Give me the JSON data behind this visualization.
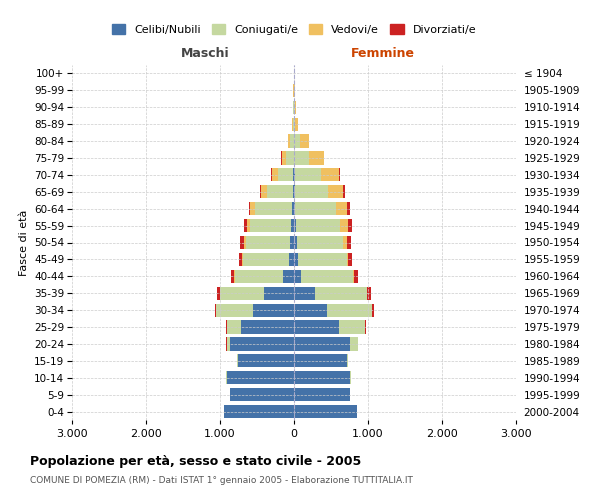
{
  "age_groups": [
    "0-4",
    "5-9",
    "10-14",
    "15-19",
    "20-24",
    "25-29",
    "30-34",
    "35-39",
    "40-44",
    "45-49",
    "50-54",
    "55-59",
    "60-64",
    "65-69",
    "70-74",
    "75-79",
    "80-84",
    "85-89",
    "90-94",
    "95-99",
    "100+"
  ],
  "birth_years": [
    "2000-2004",
    "1995-1999",
    "1990-1994",
    "1985-1989",
    "1980-1984",
    "1975-1979",
    "1970-1974",
    "1965-1969",
    "1960-1964",
    "1955-1959",
    "1950-1954",
    "1945-1949",
    "1940-1944",
    "1935-1939",
    "1930-1934",
    "1925-1929",
    "1920-1924",
    "1915-1919",
    "1910-1914",
    "1905-1909",
    "≤ 1904"
  ],
  "male": {
    "celibi": [
      950,
      860,
      910,
      760,
      860,
      710,
      550,
      400,
      150,
      70,
      50,
      40,
      30,
      20,
      15,
      5,
      0,
      0,
      0,
      0,
      0
    ],
    "coniugati": [
      0,
      0,
      5,
      10,
      50,
      200,
      500,
      600,
      650,
      620,
      600,
      550,
      500,
      350,
      200,
      100,
      50,
      20,
      10,
      5,
      2
    ],
    "vedovi": [
      0,
      0,
      0,
      0,
      2,
      2,
      2,
      3,
      5,
      10,
      20,
      40,
      60,
      80,
      80,
      60,
      30,
      10,
      5,
      2,
      0
    ],
    "divorziati": [
      0,
      0,
      0,
      0,
      2,
      5,
      20,
      40,
      50,
      40,
      60,
      50,
      20,
      15,
      10,
      5,
      2,
      0,
      0,
      0,
      0
    ]
  },
  "female": {
    "nubili": [
      850,
      760,
      760,
      710,
      760,
      610,
      450,
      280,
      100,
      60,
      40,
      25,
      20,
      15,
      10,
      5,
      0,
      0,
      0,
      0,
      0
    ],
    "coniugate": [
      0,
      2,
      5,
      15,
      100,
      350,
      600,
      700,
      700,
      650,
      620,
      600,
      550,
      450,
      350,
      200,
      80,
      20,
      10,
      5,
      2
    ],
    "vedove": [
      0,
      0,
      0,
      0,
      2,
      2,
      3,
      5,
      10,
      20,
      50,
      100,
      150,
      200,
      250,
      200,
      120,
      40,
      15,
      5,
      2
    ],
    "divorziate": [
      0,
      0,
      0,
      0,
      2,
      5,
      30,
      60,
      60,
      50,
      60,
      60,
      30,
      20,
      10,
      5,
      2,
      0,
      0,
      0,
      0
    ]
  },
  "colors": {
    "celibi": "#4472a8",
    "coniugati": "#c5d8a0",
    "vedovi": "#f0c060",
    "divorziati": "#cc2222"
  },
  "xlim": 3000,
  "title": "Popolazione per età, sesso e stato civile - 2005",
  "subtitle": "COMUNE DI POMEZIA (RM) - Dati ISTAT 1° gennaio 2005 - Elaborazione TUTTITALIA.IT",
  "ylabel_left": "Fasce di età",
  "xlabel_left": "Maschi",
  "xlabel_right": "Femmine",
  "background_color": "#ffffff",
  "grid_color": "#cccccc"
}
